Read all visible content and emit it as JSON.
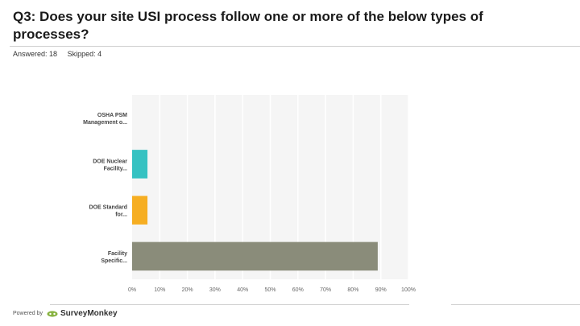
{
  "question": {
    "title": "Q3: Does your site USI process follow one or more of the below types of processes?"
  },
  "stats": {
    "answered": "Answered: 18",
    "skipped": "Skipped: 4"
  },
  "footer": {
    "powered_by": "Powered by",
    "brand": "SurveyMonkey",
    "logo_icon": "surveymonkey-logo-icon"
  },
  "chart_data": {
    "type": "bar",
    "orientation": "horizontal",
    "categories": [
      [
        "OSHA PSM",
        "Management o..."
      ],
      [
        "DOE Nuclear",
        "Facility..."
      ],
      [
        "DOE Standard",
        "for..."
      ],
      [
        "Facility",
        "Specific..."
      ]
    ],
    "values": [
      0,
      5.56,
      5.56,
      88.89
    ],
    "colors": [
      "#3a8fd0",
      "#36c2c2",
      "#f6ae22",
      "#8a8c7a"
    ],
    "xlim": [
      0,
      100
    ],
    "ticks": [
      "0%",
      "10%",
      "20%",
      "30%",
      "40%",
      "50%",
      "60%",
      "70%",
      "80%",
      "90%",
      "100%"
    ],
    "grid": true
  }
}
